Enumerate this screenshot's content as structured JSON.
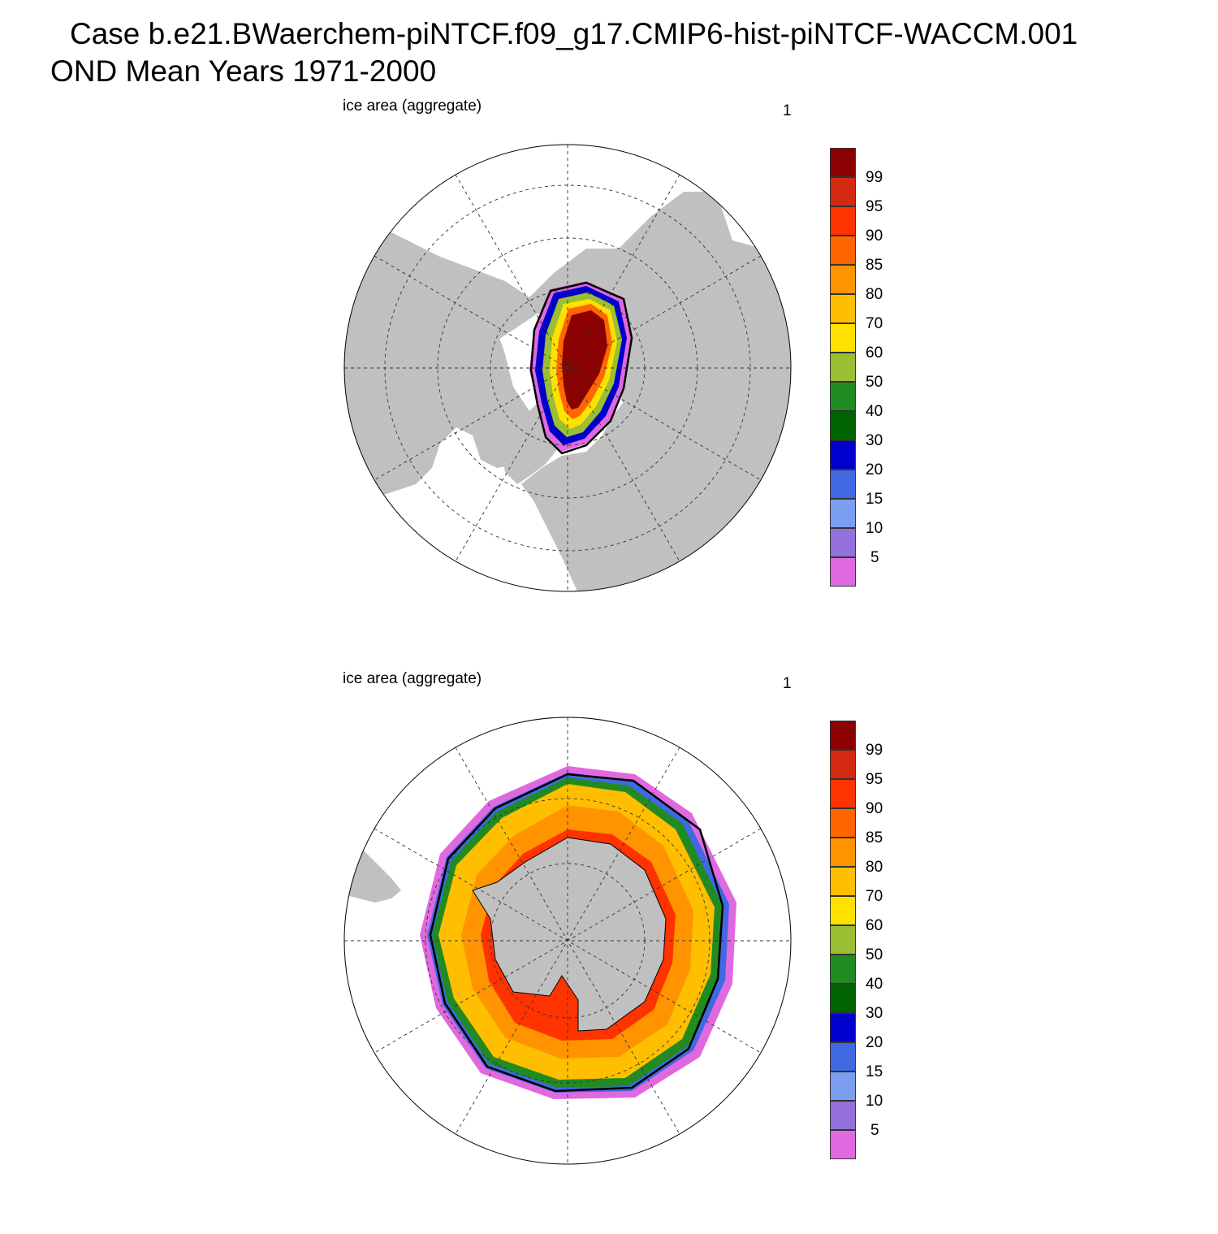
{
  "title": {
    "line1": "Case b.e21.BWaerchem-piNTCF.f09_g17.CMIP6-hist-piNTCF-WACCM.001",
    "line2": "OND Mean   Years 1971-2000"
  },
  "panels": [
    {
      "left_label": "ice area  (aggregate)",
      "right_label": "1",
      "hemisphere": "north"
    },
    {
      "left_label": "ice area  (aggregate)",
      "right_label": "1",
      "hemisphere": "south"
    }
  ],
  "colorbar": {
    "labels": [
      "99",
      "95",
      "90",
      "85",
      "80",
      "70",
      "60",
      "50",
      "40",
      "30",
      "20",
      "15",
      "10",
      "5"
    ],
    "colors": [
      "#8b0000",
      "#d42a11",
      "#ff3300",
      "#ff6600",
      "#ff9400",
      "#ffbf00",
      "#ffe100",
      "#9abf32",
      "#218b21",
      "#006400",
      "#0000cd",
      "#4169e1",
      "#7b9ef0",
      "#9370db",
      "#e069e0"
    ]
  },
  "map_colors": {
    "land": "#c0c0c0",
    "ocean": "#ffffff",
    "observed_edge": "#000000"
  }
}
